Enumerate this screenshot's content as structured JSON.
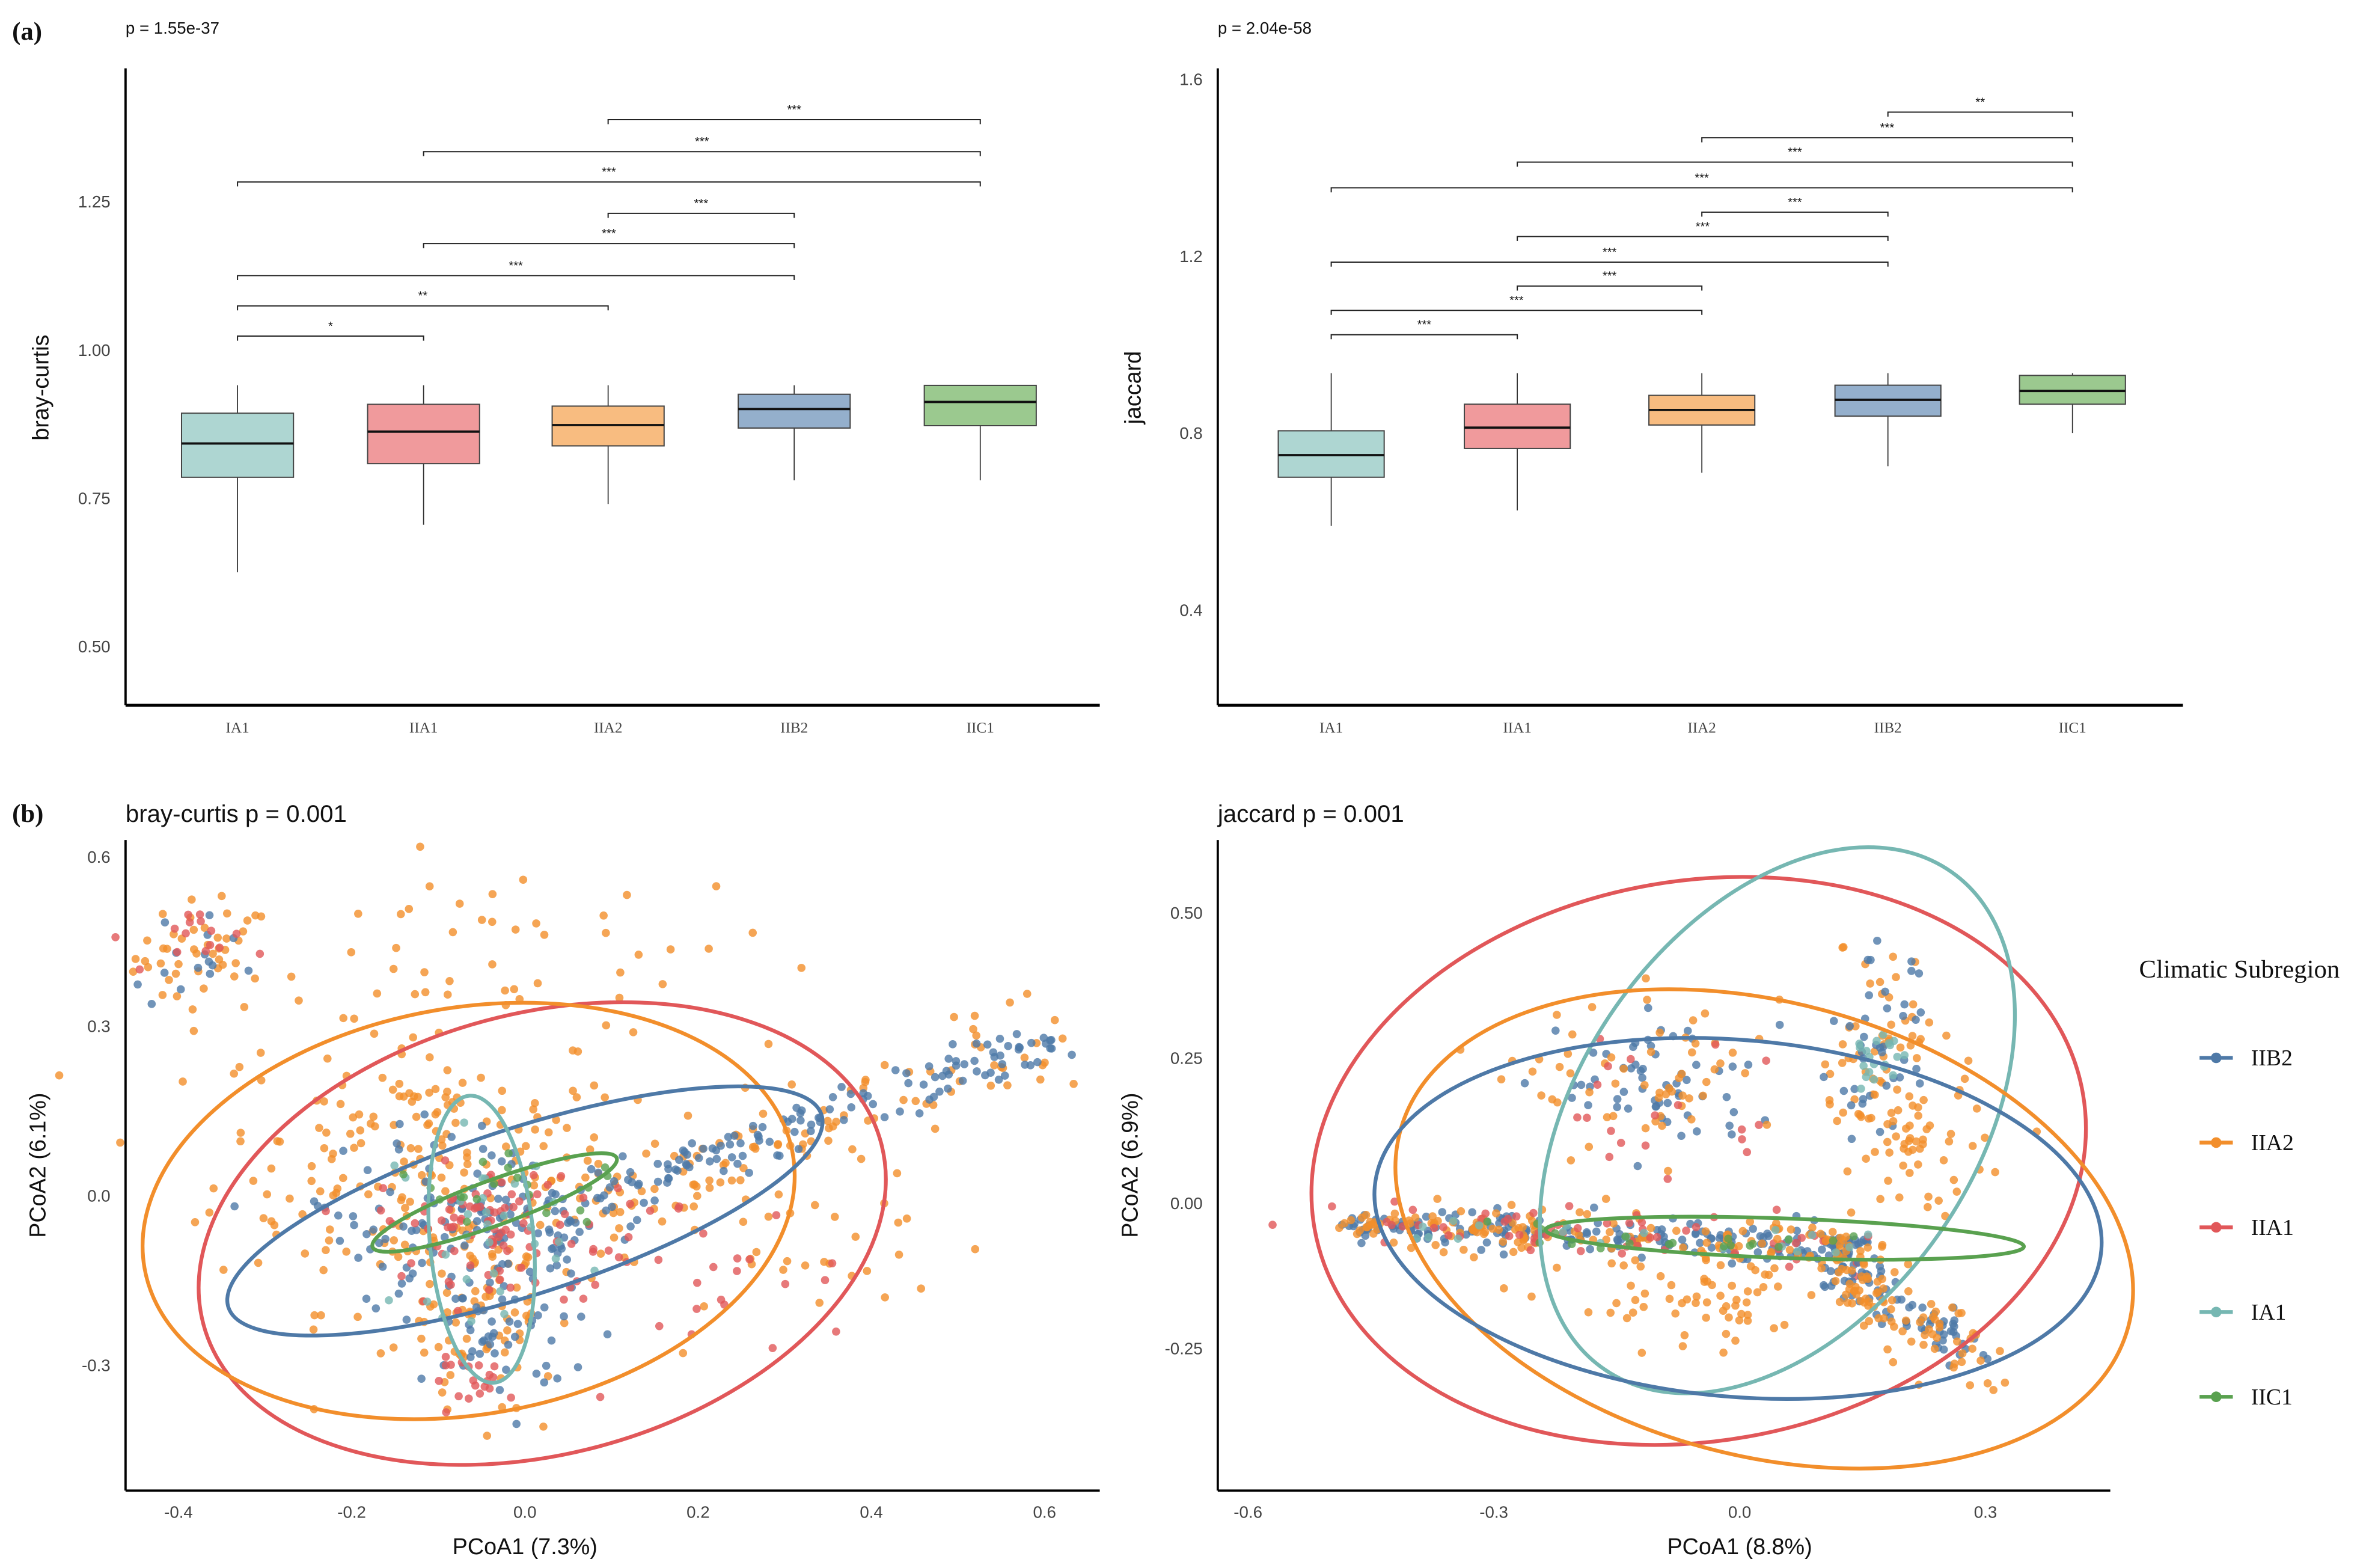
{
  "labels": {
    "a": "(a)",
    "b": "(b)"
  },
  "colors": {
    "IA1": "#76b7b2",
    "IIA1": "#e15759",
    "IIA2": "#f28e2b",
    "IIB2": "#4e79a7",
    "IIC1": "#59a14f"
  },
  "box_fill": {
    "IA1": "#aed6d2",
    "IIA1": "#f09a9c",
    "IIA2": "#f8bc80",
    "IIB2": "#94afcc",
    "IIC1": "#9bc98f"
  },
  "chart_data": [
    {
      "type": "box",
      "id": "bray-box",
      "title": "p = 1.55e-37",
      "ylabel": "bray-curtis",
      "xlabel": "",
      "categories": [
        "IA1",
        "IIA1",
        "IIA2",
        "IIB2",
        "IIC1"
      ],
      "yticks": [
        "1.25",
        "1.00",
        "0.75",
        "0.50"
      ],
      "ytick_values": [
        1.25,
        1.0,
        0.75,
        0.5
      ],
      "ylim": [
        0.4,
        1.47
      ],
      "boxes": [
        {
          "low": 0.625,
          "q1": 0.785,
          "median": 0.842,
          "q3": 0.893,
          "high": 0.94
        },
        {
          "low": 0.705,
          "q1": 0.808,
          "median": 0.862,
          "q3": 0.908,
          "high": 0.94
        },
        {
          "low": 0.74,
          "q1": 0.838,
          "median": 0.873,
          "q3": 0.905,
          "high": 0.94
        },
        {
          "low": 0.78,
          "q1": 0.868,
          "median": 0.9,
          "q3": 0.925,
          "high": 0.94
        },
        {
          "low": 0.78,
          "q1": 0.872,
          "median": 0.912,
          "q3": 0.94,
          "high": 0.94
        }
      ],
      "comparisons": [
        {
          "from": 0,
          "to": 1,
          "y": 1.023,
          "label": "*"
        },
        {
          "from": 0,
          "to": 2,
          "y": 1.074,
          "label": "**"
        },
        {
          "from": 0,
          "to": 3,
          "y": 1.125,
          "label": "***"
        },
        {
          "from": 1,
          "to": 3,
          "y": 1.179,
          "label": "***"
        },
        {
          "from": 2,
          "to": 3,
          "y": 1.23,
          "label": "***"
        },
        {
          "from": 0,
          "to": 4,
          "y": 1.283,
          "label": "***"
        },
        {
          "from": 1,
          "to": 4,
          "y": 1.334,
          "label": "***"
        },
        {
          "from": 2,
          "to": 4,
          "y": 1.388,
          "label": "***"
        }
      ]
    },
    {
      "type": "box",
      "id": "jaccard-box",
      "title": "p = 2.04e-58",
      "ylabel": "jaccard",
      "xlabel": "",
      "categories": [
        "IA1",
        "IIA1",
        "IIA2",
        "IIB2",
        "IIC1"
      ],
      "yticks": [
        "1.6",
        "1.2",
        "0.8",
        "0.4"
      ],
      "ytick_values": [
        1.6,
        1.2,
        0.8,
        0.4
      ],
      "ylim": [
        0.17,
        1.62
      ],
      "boxes": [
        {
          "low": 0.59,
          "q1": 0.7,
          "median": 0.75,
          "q3": 0.805,
          "high": 0.935
        },
        {
          "low": 0.625,
          "q1": 0.765,
          "median": 0.812,
          "q3": 0.865,
          "high": 0.935
        },
        {
          "low": 0.71,
          "q1": 0.818,
          "median": 0.852,
          "q3": 0.885,
          "high": 0.935
        },
        {
          "low": 0.725,
          "q1": 0.838,
          "median": 0.875,
          "q3": 0.908,
          "high": 0.935
        },
        {
          "low": 0.8,
          "q1": 0.865,
          "median": 0.895,
          "q3": 0.93,
          "high": 0.935
        }
      ],
      "comparisons": [
        {
          "from": 0,
          "to": 1,
          "y": 1.022,
          "label": "***"
        },
        {
          "from": 0,
          "to": 2,
          "y": 1.077,
          "label": "***"
        },
        {
          "from": 1,
          "to": 2,
          "y": 1.132,
          "label": "***"
        },
        {
          "from": 0,
          "to": 3,
          "y": 1.186,
          "label": "***"
        },
        {
          "from": 1,
          "to": 3,
          "y": 1.244,
          "label": "***"
        },
        {
          "from": 2,
          "to": 3,
          "y": 1.299,
          "label": "***"
        },
        {
          "from": 0,
          "to": 4,
          "y": 1.354,
          "label": "***"
        },
        {
          "from": 1,
          "to": 4,
          "y": 1.412,
          "label": "***"
        },
        {
          "from": 2,
          "to": 4,
          "y": 1.467,
          "label": "***"
        },
        {
          "from": 3,
          "to": 4,
          "y": 1.525,
          "label": "**"
        }
      ]
    },
    {
      "type": "scatter",
      "id": "bray-pcoa",
      "title": "bray-curtis p = 0.001",
      "xlabel": "PCoA1 (7.3%)",
      "ylabel": "PCoA2 (6.1%)",
      "xticks": [
        "-0.4",
        "-0.2",
        "0.0",
        "0.2",
        "0.4",
        "0.6"
      ],
      "xtick_values": [
        -0.4,
        -0.2,
        0,
        0.2,
        0.4,
        0.6
      ],
      "yticks": [
        "0.6",
        "0.3",
        "0.0",
        "-0.3"
      ],
      "ytick_values": [
        0.6,
        0.3,
        0,
        -0.3
      ],
      "xlim": [
        -0.46,
        0.66
      ],
      "ylim": [
        -0.52,
        0.63
      ],
      "ellipses": [
        {
          "group": "IIA1",
          "center": [
            0.02,
            -0.07
          ],
          "radii": [
            0.405,
            0.39
          ],
          "angle": -15
        },
        {
          "group": "IIA2",
          "center": [
            -0.065,
            -0.03
          ],
          "radii": [
            0.38,
            0.36
          ],
          "angle": -10
        },
        {
          "group": "IIB2",
          "center": [
            0.0,
            -0.03
          ],
          "radii": [
            0.36,
            0.147
          ],
          "angle": -18
        },
        {
          "group": "IA1",
          "center": [
            -0.05,
            -0.08
          ],
          "radii": [
            0.06,
            0.255
          ],
          "angle": -5
        },
        {
          "group": "IIC1",
          "center": [
            -0.035,
            -0.015
          ],
          "radii": [
            0.15,
            0.04
          ],
          "angle": -20
        }
      ],
      "point_clusters": [
        {
          "group": "IIA2",
          "center": [
            -0.37,
            0.42
          ],
          "spread": [
            0.04,
            0.05
          ],
          "n": 45
        },
        {
          "group": "IIA2",
          "center": [
            -0.02,
            0.44
          ],
          "spread": [
            0.16,
            0.07
          ],
          "n": 40
        },
        {
          "group": "IIA2",
          "center": [
            -0.12,
            0.06
          ],
          "spread": [
            0.12,
            0.13
          ],
          "n": 220
        },
        {
          "group": "IIA2",
          "from": [
            0.05,
            -0.02
          ],
          "to": [
            0.6,
            0.27
          ],
          "noise": 0.04,
          "n": 90
        },
        {
          "group": "IIA2",
          "center": [
            -0.05,
            -0.2
          ],
          "spread": [
            0.04,
            0.08
          ],
          "n": 80
        },
        {
          "group": "IIA2",
          "center": [
            0.25,
            -0.05
          ],
          "spread": [
            0.12,
            0.1
          ],
          "n": 60
        },
        {
          "group": "IIB2",
          "center": [
            -0.38,
            0.4
          ],
          "spread": [
            0.03,
            0.04
          ],
          "n": 15
        },
        {
          "group": "IIB2",
          "center": [
            -0.05,
            -0.05
          ],
          "spread": [
            0.1,
            0.08
          ],
          "n": 150
        },
        {
          "group": "IIB2",
          "from": [
            0.05,
            -0.02
          ],
          "to": [
            0.6,
            0.27
          ],
          "noise": 0.02,
          "n": 130
        },
        {
          "group": "IIB2",
          "center": [
            -0.03,
            -0.25
          ],
          "spread": [
            0.04,
            0.06
          ],
          "n": 40
        },
        {
          "group": "IIA1",
          "center": [
            -0.05,
            -0.05
          ],
          "spread": [
            0.06,
            0.05
          ],
          "n": 80
        },
        {
          "group": "IIA1",
          "center": [
            0.15,
            -0.15
          ],
          "spread": [
            0.12,
            0.08
          ],
          "n": 40
        },
        {
          "group": "IIA1",
          "center": [
            -0.05,
            -0.33
          ],
          "spread": [
            0.03,
            0.02
          ],
          "n": 20
        },
        {
          "group": "IIA1",
          "center": [
            -0.36,
            0.45
          ],
          "spread": [
            0.03,
            0.03
          ],
          "n": 15
        },
        {
          "group": "IA1",
          "center": [
            -0.05,
            -0.05
          ],
          "spread": [
            0.05,
            0.08
          ],
          "n": 30
        },
        {
          "group": "IIC1",
          "center": [
            0.0,
            0.0
          ],
          "spread": [
            0.08,
            0.03
          ],
          "n": 20
        }
      ]
    },
    {
      "type": "scatter",
      "id": "jaccard-pcoa",
      "title": "jaccard p = 0.001",
      "xlabel": "PCoA1 (8.8%)",
      "ylabel": "PCoA2 (6.9%)",
      "xticks": [
        "-0.6",
        "-0.3",
        "0.0",
        "0.3"
      ],
      "xtick_values": [
        -0.6,
        -0.3,
        0,
        0.3
      ],
      "yticks": [
        "0.50",
        "0.25",
        "0.00",
        "-0.25"
      ],
      "ytick_values": [
        0.5,
        0.25,
        0,
        -0.25
      ],
      "xlim": [
        -0.64,
        0.45
      ],
      "ylim": [
        -0.5,
        0.62
      ],
      "ellipses": [
        {
          "group": "IIA1",
          "center": [
            -0.05,
            0.07
          ],
          "radii": [
            0.476,
            0.482
          ],
          "angle": -10
        },
        {
          "group": "IA1",
          "center": [
            0.046,
            0.14
          ],
          "radii": [
            0.37,
            0.34
          ],
          "angle": -55
        },
        {
          "group": "IIA2",
          "center": [
            0.03,
            -0.047
          ],
          "radii": [
            0.46,
            0.39
          ],
          "angle": 15
        },
        {
          "group": "IIB2",
          "center": [
            -0.002,
            -0.029
          ],
          "radii": [
            0.445,
            0.307
          ],
          "angle": 5
        },
        {
          "group": "IIC1",
          "center": [
            0.055,
            -0.063
          ],
          "radii": [
            0.292,
            0.034
          ],
          "angle": 2
        }
      ],
      "point_clusters": [
        {
          "group": "IIB2",
          "from": [
            -0.48,
            -0.04
          ],
          "to": [
            0.15,
            -0.08
          ],
          "noise": 0.015,
          "n": 200
        },
        {
          "group": "IIA2",
          "from": [
            -0.48,
            -0.04
          ],
          "to": [
            0.15,
            -0.08
          ],
          "noise": 0.02,
          "n": 150
        },
        {
          "group": "IIA1",
          "from": [
            -0.45,
            -0.04
          ],
          "to": [
            0.15,
            -0.08
          ],
          "noise": 0.02,
          "n": 60
        },
        {
          "group": "IIB2",
          "from": [
            0.1,
            -0.08
          ],
          "to": [
            0.28,
            -0.27
          ],
          "noise": 0.02,
          "n": 80
        },
        {
          "group": "IIA2",
          "from": [
            0.1,
            -0.08
          ],
          "to": [
            0.3,
            -0.28
          ],
          "noise": 0.03,
          "n": 100
        },
        {
          "group": "IIB2",
          "center": [
            -0.1,
            0.2
          ],
          "spread": [
            0.06,
            0.06
          ],
          "n": 60
        },
        {
          "group": "IIA2",
          "center": [
            -0.1,
            0.2
          ],
          "spread": [
            0.08,
            0.07
          ],
          "n": 60
        },
        {
          "group": "IIA1",
          "center": [
            -0.1,
            0.18
          ],
          "spread": [
            0.08,
            0.08
          ],
          "n": 20
        },
        {
          "group": "IIA2",
          "center": [
            0.17,
            0.25
          ],
          "spread": [
            0.04,
            0.1
          ],
          "n": 60
        },
        {
          "group": "IIB2",
          "center": [
            0.17,
            0.25
          ],
          "spread": [
            0.03,
            0.08
          ],
          "n": 40
        },
        {
          "group": "IIA2",
          "center": [
            0.22,
            0.1
          ],
          "spread": [
            0.04,
            0.06
          ],
          "n": 50
        },
        {
          "group": "IIA2",
          "center": [
            -0.05,
            -0.18
          ],
          "spread": [
            0.08,
            0.04
          ],
          "n": 60
        },
        {
          "group": "IA1",
          "center": [
            0.17,
            0.25
          ],
          "spread": [
            0.02,
            0.04
          ],
          "n": 20
        },
        {
          "group": "IA1",
          "from": [
            -0.4,
            -0.05
          ],
          "to": [
            0.15,
            -0.08
          ],
          "noise": 0.015,
          "n": 20
        },
        {
          "group": "IIC1",
          "from": [
            -0.3,
            -0.05
          ],
          "to": [
            0.15,
            -0.08
          ],
          "noise": 0.01,
          "n": 20
        },
        {
          "group": "IIA1",
          "center": [
            -0.57,
            -0.04
          ],
          "spread": [
            0.0,
            0.0
          ],
          "n": 1
        }
      ]
    }
  ],
  "legend": {
    "title": "Climatic Subregion",
    "items": [
      {
        "label": "IIB2",
        "group": "IIB2"
      },
      {
        "label": "IIA2",
        "group": "IIA2"
      },
      {
        "label": "IIA1",
        "group": "IIA1"
      },
      {
        "label": "IA1",
        "group": "IA1"
      },
      {
        "label": "IIC1",
        "group": "IIC1"
      }
    ]
  }
}
